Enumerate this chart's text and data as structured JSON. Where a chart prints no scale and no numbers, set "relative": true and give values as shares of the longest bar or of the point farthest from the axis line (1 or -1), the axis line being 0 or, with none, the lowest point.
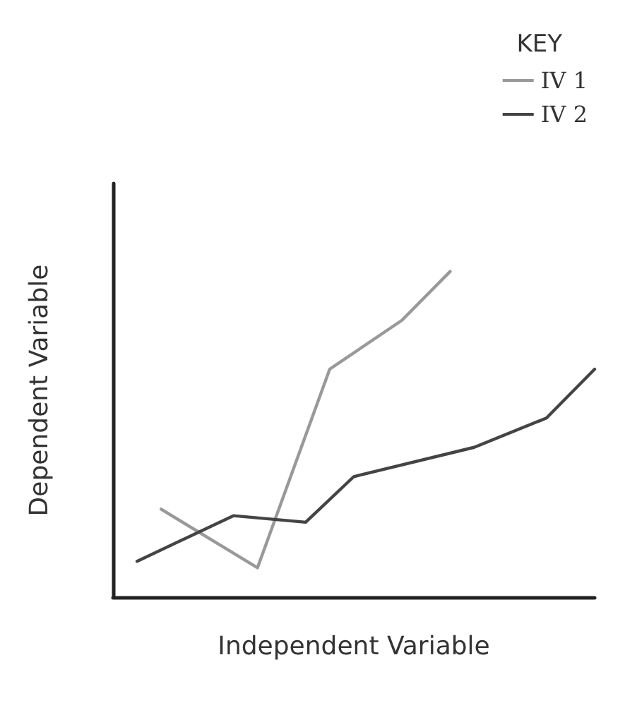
{
  "chart_data": {
    "type": "line",
    "relative": true,
    "xlabel": "Independent Variable",
    "ylabel": "Dependent Variable",
    "legend_title": "KEY",
    "legend": "top right",
    "grid": false,
    "marker": "none",
    "line_style": "solid",
    "categories": [
      null,
      null,
      null,
      null,
      null,
      null,
      null,
      null,
      null,
      null,
      null,
      null,
      null,
      null,
      null,
      null,
      null,
      null,
      null,
      null,
      null
    ],
    "series": [
      {
        "name": "IV 1",
        "color": "#999999",
        "values": [
          null,
          null,
          0.27,
          null,
          null,
          null,
          0.09,
          null,
          null,
          0.7,
          null,
          null,
          0.85,
          null,
          1.0,
          null,
          null,
          null,
          null,
          null,
          null
        ]
      },
      {
        "name": "IV 2",
        "color": "#444444",
        "values": [
          null,
          0.11,
          null,
          null,
          null,
          0.25,
          null,
          null,
          0.23,
          null,
          0.37,
          null,
          null,
          null,
          null,
          0.46,
          null,
          null,
          0.55,
          null,
          0.7
        ]
      }
    ]
  }
}
